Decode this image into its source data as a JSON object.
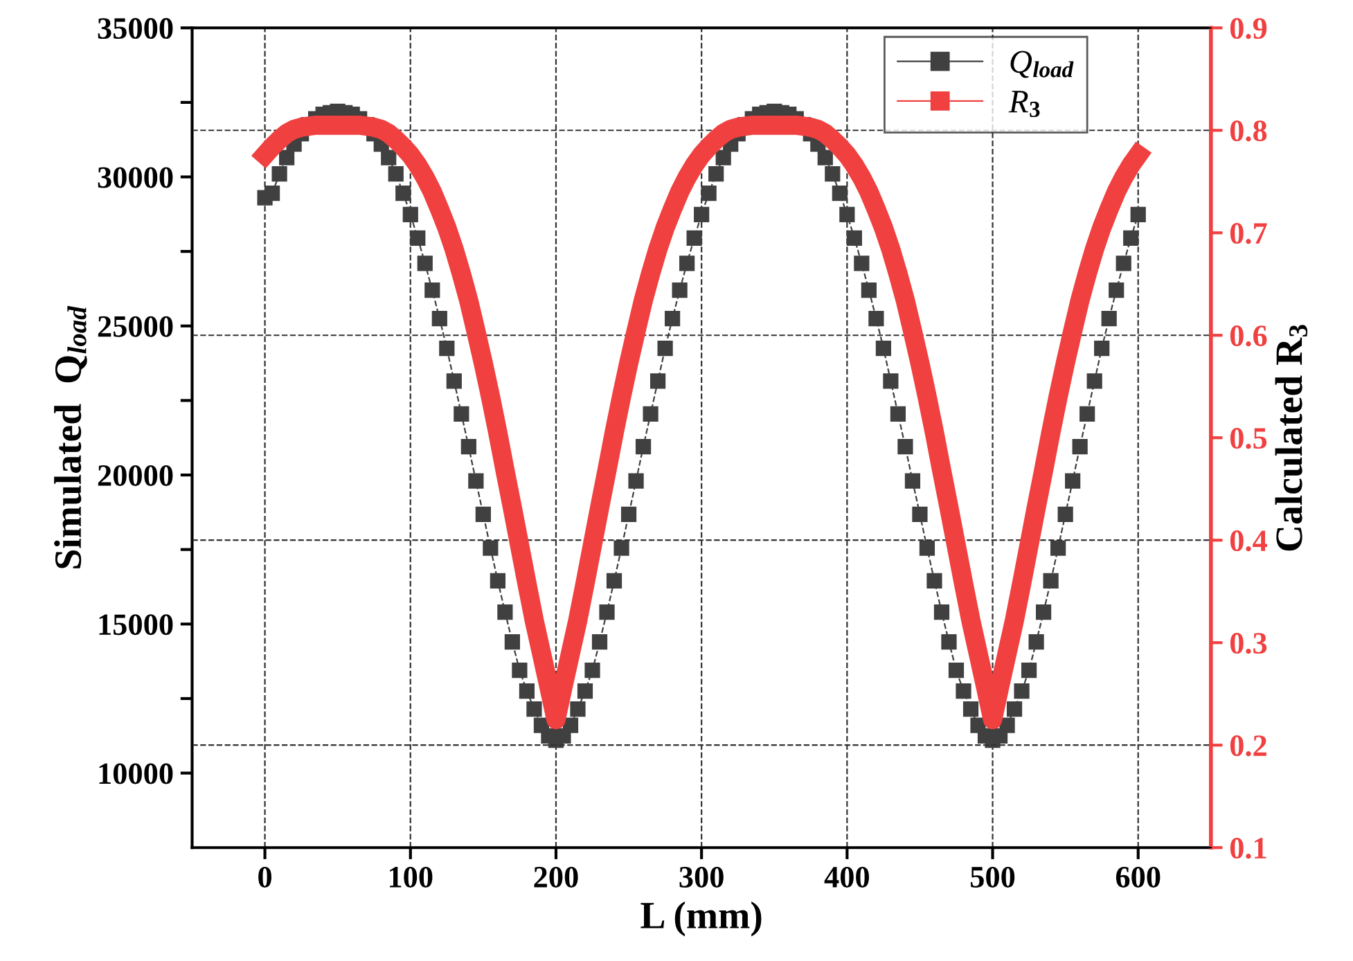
{
  "chart_data": {
    "type": "line",
    "xlabel": "L (mm)",
    "ylabel": "Simulated  Q$_{load}$",
    "y2label": "Calculated R$_{3}$",
    "x": [
      0,
      5,
      10,
      15,
      20,
      25,
      30,
      35,
      40,
      45,
      50,
      55,
      60,
      65,
      70,
      75,
      80,
      85,
      90,
      95,
      100,
      105,
      110,
      115,
      120,
      125,
      130,
      135,
      140,
      145,
      150,
      155,
      160,
      165,
      170,
      175,
      180,
      185,
      190,
      195,
      200,
      205,
      210,
      215,
      220,
      225,
      230,
      235,
      240,
      245,
      250,
      255,
      260,
      265,
      270,
      275,
      280,
      285,
      290,
      295,
      300,
      305,
      310,
      315,
      320,
      325,
      330,
      335,
      340,
      345,
      350,
      355,
      360,
      365,
      370,
      375,
      380,
      385,
      390,
      395,
      400,
      405,
      410,
      415,
      420,
      425,
      430,
      435,
      440,
      445,
      450,
      455,
      460,
      465,
      470,
      475,
      480,
      485,
      490,
      495,
      500,
      505,
      510,
      515,
      520,
      525,
      530,
      535,
      540,
      545,
      550,
      555,
      560,
      565,
      570,
      575,
      580,
      585,
      590,
      595,
      600
    ],
    "series": [
      {
        "name": "Q$_{load}$",
        "color": "#404040",
        "marker": "square",
        "line_style": "dashed",
        "values": [
          29300,
          29450,
          30100,
          30650,
          31100,
          31450,
          31750,
          31950,
          32100,
          32150,
          32200,
          32150,
          32100,
          31950,
          31750,
          31450,
          31100,
          30650,
          30100,
          29450,
          28740,
          27950,
          27100,
          26200,
          25250,
          24250,
          23150,
          22050,
          20950,
          19800,
          18680,
          17550,
          16450,
          15400,
          14400,
          13450,
          12750,
          12150,
          11600,
          11250,
          11100,
          11250,
          11600,
          12150,
          12750,
          13450,
          14400,
          15400,
          16450,
          17550,
          18680,
          19800,
          20950,
          22050,
          23150,
          24250,
          25250,
          26200,
          27100,
          27950,
          28740,
          29450,
          30100,
          30650,
          31100,
          31450,
          31750,
          31950,
          32100,
          32150,
          32200,
          32150,
          32100,
          31950,
          31750,
          31450,
          31100,
          30650,
          30100,
          29450,
          28740,
          27950,
          27100,
          26200,
          25250,
          24250,
          23150,
          22050,
          20950,
          19800,
          18680,
          17550,
          16450,
          15400,
          14400,
          13450,
          12750,
          12150,
          11600,
          11250,
          11100,
          11250,
          11600,
          12150,
          12750,
          13450,
          14400,
          15400,
          16450,
          17550,
          18680,
          19800,
          20950,
          22050,
          23150,
          24250,
          25250,
          26200,
          27100,
          27950,
          28740
        ]
      },
      {
        "name": "R$_{3}$",
        "color": "#f04040",
        "marker": "square",
        "line_style": "solid",
        "axis": "y2",
        "values": [
          0.776,
          0.784,
          0.791,
          0.797,
          0.801,
          0.803,
          0.804,
          0.805,
          0.805,
          0.805,
          0.805,
          0.805,
          0.805,
          0.805,
          0.804,
          0.803,
          0.801,
          0.797,
          0.791,
          0.784,
          0.776,
          0.766,
          0.754,
          0.74,
          0.723,
          0.705,
          0.684,
          0.66,
          0.634,
          0.604,
          0.573,
          0.54,
          0.505,
          0.468,
          0.432,
          0.395,
          0.358,
          0.322,
          0.29,
          0.258,
          0.225,
          0.258,
          0.29,
          0.322,
          0.358,
          0.395,
          0.432,
          0.468,
          0.505,
          0.54,
          0.573,
          0.604,
          0.634,
          0.66,
          0.684,
          0.705,
          0.723,
          0.74,
          0.754,
          0.766,
          0.776,
          0.784,
          0.791,
          0.797,
          0.801,
          0.803,
          0.804,
          0.805,
          0.805,
          0.805,
          0.805,
          0.805,
          0.805,
          0.805,
          0.804,
          0.803,
          0.801,
          0.797,
          0.791,
          0.784,
          0.776,
          0.766,
          0.754,
          0.74,
          0.723,
          0.705,
          0.684,
          0.66,
          0.634,
          0.604,
          0.573,
          0.54,
          0.505,
          0.468,
          0.432,
          0.395,
          0.358,
          0.322,
          0.29,
          0.258,
          0.225,
          0.258,
          0.29,
          0.322,
          0.358,
          0.395,
          0.432,
          0.468,
          0.505,
          0.54,
          0.573,
          0.604,
          0.634,
          0.66,
          0.684,
          0.705,
          0.723,
          0.74,
          0.754,
          0.766,
          0.776
        ]
      }
    ],
    "xlim": [
      -50,
      650
    ],
    "xticks": [
      0,
      100,
      200,
      300,
      400,
      500,
      600
    ],
    "ylim": [
      7500,
      35000
    ],
    "yticks": [
      10000,
      {
        "value": 12500,
        "label": null
      },
      15000,
      {
        "value": 17500,
        "label": null
      },
      20000,
      {
        "value": 22500,
        "label": null
      },
      25000,
      {
        "value": 27500,
        "label": null
      },
      30000,
      {
        "value": 32500,
        "label": null
      },
      35000
    ],
    "y2lim": [
      0.1,
      0.9
    ],
    "y2ticks": [
      0.1,
      0.2,
      0.3,
      0.4,
      0.5,
      0.6,
      0.7,
      0.8,
      0.9
    ],
    "grid": "x",
    "ref_lines": [
      {
        "axis": "y2",
        "value": 0.2,
        "line_style": "dashed"
      },
      {
        "axis": "y2",
        "value": 0.4,
        "line_style": "dashed"
      },
      {
        "axis": "y2",
        "value": 0.6,
        "line_style": "dashed"
      },
      {
        "axis": "y2",
        "value": 0.8,
        "line_style": "dashed"
      }
    ],
    "legend": "top right"
  }
}
